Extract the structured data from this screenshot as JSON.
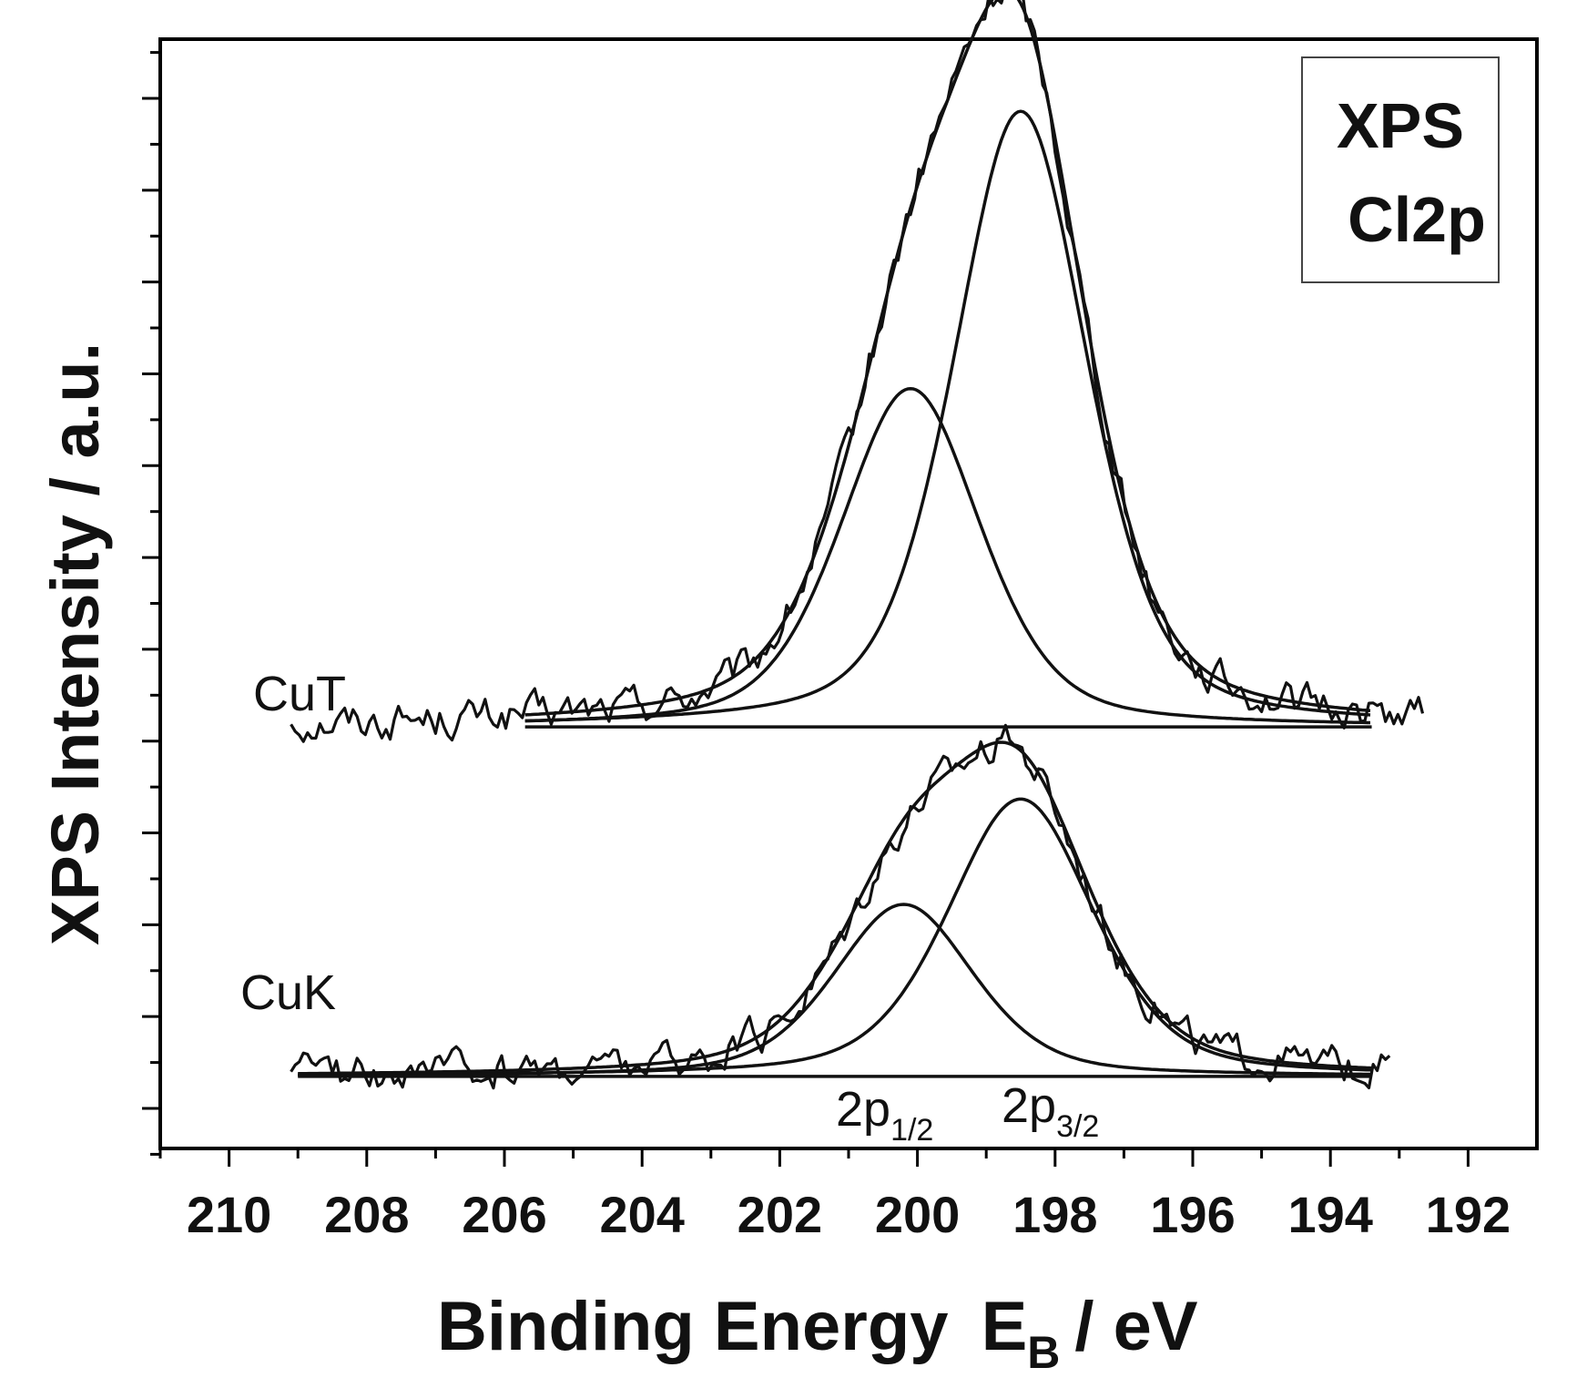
{
  "chart_data": {
    "type": "line",
    "title": "",
    "xlabel": "Binding Energy",
    "xlabel_symbol": "E",
    "xlabel_subscript": "B",
    "xlabel_unit": "/ eV",
    "ylabel": "XPS Intensity / a.u.",
    "xlim": [
      211,
      191
    ],
    "ylim": [
      0,
      100
    ],
    "x_ticks": [
      210,
      208,
      206,
      204,
      202,
      200,
      198,
      196,
      194,
      192
    ],
    "x_tick_labels": [
      "210",
      "208",
      "206",
      "204",
      "202",
      "200",
      "198",
      "196",
      "194",
      "192"
    ],
    "y_tick_labels": [],
    "legend_box": {
      "line1": "XPS",
      "line2": "Cl2p"
    },
    "series": [
      {
        "name": "CuT",
        "baseline": 38,
        "x_range": [
          209.1,
          192.6
        ],
        "fit_x_range": [
          205.7,
          193.4
        ],
        "components": [
          {
            "name": "2p1/2",
            "center": 200.1,
            "height": 30.5,
            "fwhm": 2.4
          },
          {
            "name": "2p3/2",
            "center": 198.5,
            "height": 55.5,
            "fwhm": 2.3
          }
        ],
        "noise_amplitude": 1.5
      },
      {
        "name": "CuK",
        "baseline": 6.5,
        "x_range": [
          209.1,
          193.1
        ],
        "fit_x_range": [
          209.0,
          193.4
        ],
        "components": [
          {
            "name": "2p1/2",
            "center": 200.2,
            "height": 15.5,
            "fwhm": 2.4
          },
          {
            "name": "2p3/2",
            "center": 198.5,
            "height": 25.0,
            "fwhm": 2.5
          }
        ],
        "noise_amplitude": 1.5
      }
    ],
    "annotations": [
      {
        "text": "2p",
        "subscript": "1/2"
      },
      {
        "text": "2p",
        "subscript": "3/2"
      }
    ]
  }
}
